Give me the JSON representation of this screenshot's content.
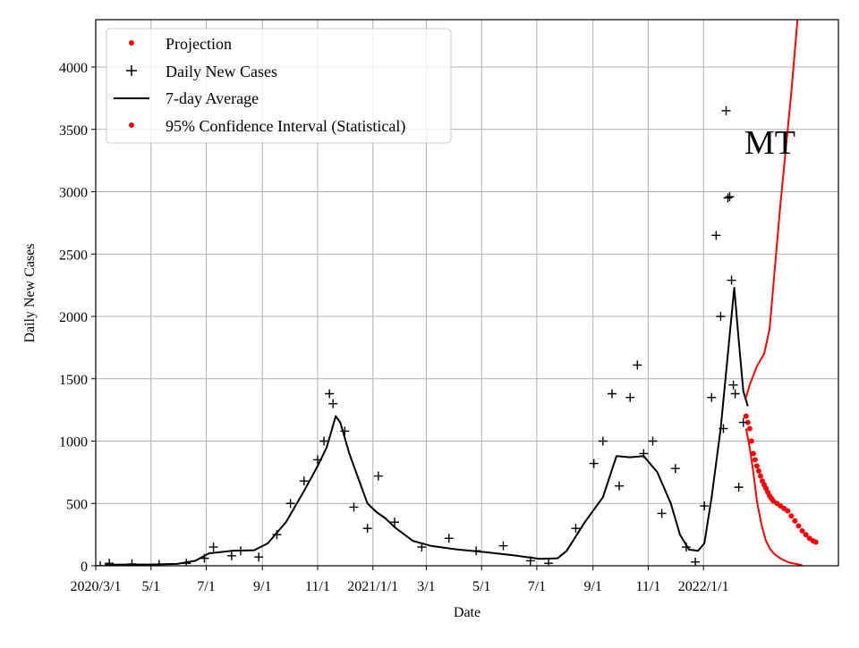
{
  "chart_data": {
    "type": "line",
    "title": "",
    "xlabel": "Date",
    "ylabel": "Daily New Cases",
    "xlim": [
      0,
      820
    ],
    "ylim": [
      0,
      4380
    ],
    "grid": true,
    "legend_position": "top-left",
    "annotation": "MT",
    "x_ticks": [
      {
        "day": 0,
        "label": "2020/3/1"
      },
      {
        "day": 61,
        "label": "5/1"
      },
      {
        "day": 122,
        "label": "7/1"
      },
      {
        "day": 184,
        "label": "9/1"
      },
      {
        "day": 245,
        "label": "11/1"
      },
      {
        "day": 306,
        "label": "2021/1/1"
      },
      {
        "day": 365,
        "label": "3/1"
      },
      {
        "day": 426,
        "label": "5/1"
      },
      {
        "day": 487,
        "label": "7/1"
      },
      {
        "day": 549,
        "label": "9/1"
      },
      {
        "day": 610,
        "label": "11/1"
      },
      {
        "day": 671,
        "label": "2022/1/1"
      }
    ],
    "y_ticks": [
      0,
      500,
      1000,
      1500,
      2000,
      2500,
      3000,
      3500,
      4000
    ],
    "legend": [
      {
        "label": "Projection",
        "marker": "dot",
        "color": "#ff0000"
      },
      {
        "label": "Daily New Cases",
        "marker": "plus",
        "color": "#000000"
      },
      {
        "label": "7-day Average",
        "marker": "line",
        "color": "#000000"
      },
      {
        "label": "95% Confidence Interval (Statistical)",
        "marker": "dot",
        "color": "#ff0000"
      }
    ],
    "series": [
      {
        "name": "7-day Average",
        "color": "#000000",
        "points": [
          [
            10,
            8
          ],
          [
            30,
            10
          ],
          [
            60,
            10
          ],
          [
            90,
            15
          ],
          [
            110,
            40
          ],
          [
            125,
            100
          ],
          [
            150,
            120
          ],
          [
            175,
            125
          ],
          [
            190,
            180
          ],
          [
            210,
            350
          ],
          [
            230,
            600
          ],
          [
            245,
            800
          ],
          [
            255,
            950
          ],
          [
            265,
            1200
          ],
          [
            270,
            1150
          ],
          [
            280,
            900
          ],
          [
            290,
            700
          ],
          [
            300,
            500
          ],
          [
            310,
            430
          ],
          [
            320,
            380
          ],
          [
            330,
            310
          ],
          [
            350,
            200
          ],
          [
            370,
            160
          ],
          [
            400,
            130
          ],
          [
            430,
            110
          ],
          [
            460,
            85
          ],
          [
            490,
            55
          ],
          [
            510,
            60
          ],
          [
            520,
            120
          ],
          [
            540,
            350
          ],
          [
            560,
            550
          ],
          [
            575,
            880
          ],
          [
            590,
            870
          ],
          [
            605,
            880
          ],
          [
            620,
            750
          ],
          [
            635,
            500
          ],
          [
            645,
            250
          ],
          [
            655,
            130
          ],
          [
            665,
            120
          ],
          [
            672,
            180
          ],
          [
            680,
            550
          ],
          [
            690,
            1100
          ],
          [
            700,
            1850
          ],
          [
            705,
            2230
          ],
          [
            710,
            1800
          ],
          [
            715,
            1400
          ],
          [
            720,
            1280
          ]
        ]
      },
      {
        "name": "95% Confidence Interval Upper",
        "color": "#ff0000",
        "points": [
          [
            718,
            1350
          ],
          [
            722,
            1450
          ],
          [
            730,
            1600
          ],
          [
            738,
            1700
          ],
          [
            744,
            1900
          ],
          [
            750,
            2400
          ],
          [
            756,
            2900
          ],
          [
            762,
            3350
          ],
          [
            768,
            3800
          ],
          [
            775,
            4400
          ]
        ]
      },
      {
        "name": "95% Confidence Interval Lower",
        "color": "#ff0000",
        "points": [
          [
            718,
            1100
          ],
          [
            722,
            950
          ],
          [
            726,
            750
          ],
          [
            730,
            520
          ],
          [
            735,
            330
          ],
          [
            740,
            200
          ],
          [
            745,
            130
          ],
          [
            750,
            90
          ],
          [
            758,
            50
          ],
          [
            766,
            25
          ],
          [
            780,
            5
          ]
        ]
      },
      {
        "name": "Projection",
        "color": "#ff0000",
        "points": [
          [
            718,
            1200
          ],
          [
            720,
            1150
          ],
          [
            722,
            1100
          ],
          [
            724,
            1000
          ],
          [
            726,
            900
          ],
          [
            728,
            850
          ],
          [
            730,
            800
          ],
          [
            732,
            760
          ],
          [
            734,
            720
          ],
          [
            736,
            680
          ],
          [
            738,
            650
          ],
          [
            740,
            620
          ],
          [
            742,
            590
          ],
          [
            744,
            560
          ],
          [
            746,
            540
          ],
          [
            748,
            520
          ],
          [
            752,
            500
          ],
          [
            756,
            480
          ],
          [
            760,
            460
          ],
          [
            764,
            440
          ],
          [
            768,
            400
          ],
          [
            772,
            360
          ],
          [
            776,
            320
          ],
          [
            780,
            280
          ],
          [
            784,
            250
          ],
          [
            788,
            220
          ],
          [
            792,
            200
          ],
          [
            795,
            190
          ]
        ]
      },
      {
        "name": "Daily New Cases",
        "color": "#000000",
        "points": [
          [
            5,
            0
          ],
          [
            15,
            20
          ],
          [
            40,
            15
          ],
          [
            70,
            10
          ],
          [
            100,
            20
          ],
          [
            120,
            60
          ],
          [
            130,
            150
          ],
          [
            150,
            80
          ],
          [
            160,
            120
          ],
          [
            180,
            70
          ],
          [
            200,
            250
          ],
          [
            215,
            500
          ],
          [
            230,
            680
          ],
          [
            245,
            850
          ],
          [
            252,
            1000
          ],
          [
            258,
            1380
          ],
          [
            262,
            1300
          ],
          [
            275,
            1080
          ],
          [
            285,
            470
          ],
          [
            300,
            300
          ],
          [
            312,
            720
          ],
          [
            330,
            350
          ],
          [
            360,
            150
          ],
          [
            390,
            220
          ],
          [
            420,
            120
          ],
          [
            450,
            160
          ],
          [
            480,
            40
          ],
          [
            500,
            20
          ],
          [
            530,
            300
          ],
          [
            550,
            820
          ],
          [
            560,
            1000
          ],
          [
            570,
            1380
          ],
          [
            578,
            640
          ],
          [
            590,
            1350
          ],
          [
            598,
            1610
          ],
          [
            605,
            900
          ],
          [
            615,
            1000
          ],
          [
            625,
            420
          ],
          [
            640,
            780
          ],
          [
            652,
            150
          ],
          [
            662,
            30
          ],
          [
            672,
            480
          ],
          [
            680,
            1350
          ],
          [
            685,
            2650
          ],
          [
            690,
            2000
          ],
          [
            693,
            1100
          ],
          [
            696,
            3650
          ],
          [
            698,
            2950
          ],
          [
            700,
            2960
          ],
          [
            702,
            2290
          ],
          [
            704,
            1450
          ],
          [
            706,
            1380
          ],
          [
            710,
            630
          ],
          [
            715,
            1150
          ]
        ]
      }
    ]
  }
}
